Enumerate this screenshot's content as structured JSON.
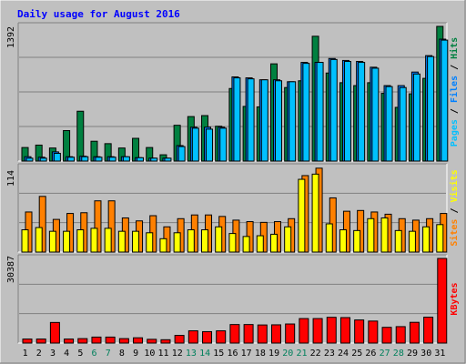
{
  "chart_data": [
    {
      "type": "bar",
      "title": "Daily usage for August 2016",
      "panel": "hits-files-pages",
      "ylabel_parts": [
        "Pages",
        "Files",
        "Hits"
      ],
      "ymax_label": "1392",
      "ylim": [
        0,
        1392
      ],
      "grid": true,
      "categories": [
        "1",
        "2",
        "3",
        "4",
        "5",
        "6",
        "7",
        "8",
        "9",
        "10",
        "11",
        "12",
        "13",
        "14",
        "15",
        "16",
        "17",
        "18",
        "19",
        "20",
        "21",
        "22",
        "23",
        "24",
        "25",
        "26",
        "27",
        "28",
        "29",
        "30",
        "31"
      ],
      "weekend_days": [
        "6",
        "7",
        "13",
        "14",
        "20",
        "21",
        "27",
        "28"
      ],
      "series": [
        {
          "name": "Hits",
          "color": "#008040",
          "values": [
            140,
            165,
            135,
            315,
            515,
            205,
            180,
            135,
            235,
            140,
            65,
            370,
            460,
            470,
            360,
            750,
            565,
            560,
            1005,
            760,
            830,
            1290,
            910,
            810,
            780,
            810,
            700,
            555,
            695,
            855,
            1392
          ]
        },
        {
          "name": "Files",
          "color": "#0080ff",
          "values": [
            45,
            40,
            95,
            45,
            50,
            45,
            45,
            45,
            35,
            30,
            30,
            160,
            350,
            350,
            350,
            870,
            860,
            840,
            840,
            820,
            1020,
            1020,
            1060,
            1040,
            1030,
            970,
            780,
            780,
            920,
            1090,
            1260
          ]
        },
        {
          "name": "Pages",
          "color": "#00c0ff",
          "values": [
            30,
            30,
            80,
            40,
            45,
            40,
            40,
            45,
            35,
            30,
            30,
            150,
            340,
            330,
            340,
            860,
            850,
            840,
            830,
            820,
            1010,
            1020,
            1050,
            1030,
            1020,
            960,
            770,
            760,
            900,
            1080,
            1250
          ]
        }
      ]
    },
    {
      "type": "bar",
      "panel": "visits-sites",
      "ylabel_parts": [
        "Sites",
        "Visits"
      ],
      "ymax_label": "114",
      "ylim": [
        0,
        114
      ],
      "grid": true,
      "series": [
        {
          "name": "Visits",
          "color": "#ff8000",
          "values": [
            54,
            75,
            44,
            52,
            53,
            69,
            69,
            46,
            42,
            49,
            34,
            45,
            50,
            50,
            48,
            43,
            41,
            40,
            41,
            45,
            103,
            113,
            73,
            55,
            56,
            54,
            51,
            45,
            43,
            45,
            52
          ]
        },
        {
          "name": "Sites",
          "color": "#ffff00",
          "values": [
            30,
            33,
            28,
            28,
            30,
            32,
            32,
            28,
            28,
            26,
            18,
            26,
            30,
            30,
            34,
            25,
            21,
            22,
            24,
            34,
            98,
            105,
            38,
            30,
            29,
            45,
            46,
            29,
            28,
            34,
            37
          ]
        }
      ]
    },
    {
      "type": "bar",
      "panel": "kbytes",
      "ylabel_parts": [
        "KBytes"
      ],
      "ymax_label": "30387",
      "ylim": [
        0,
        30387
      ],
      "grid": true,
      "series": [
        {
          "name": "KBytes",
          "color": "#ff0000",
          "values": [
            1450,
            1450,
            7400,
            1450,
            1600,
            2150,
            2150,
            1600,
            1900,
            1350,
            1200,
            2750,
            4400,
            4100,
            4400,
            6650,
            6650,
            6500,
            6550,
            6850,
            8800,
            8800,
            9250,
            9150,
            8300,
            7900,
            5650,
            5900,
            7450,
            9300,
            30387
          ]
        }
      ]
    }
  ]
}
